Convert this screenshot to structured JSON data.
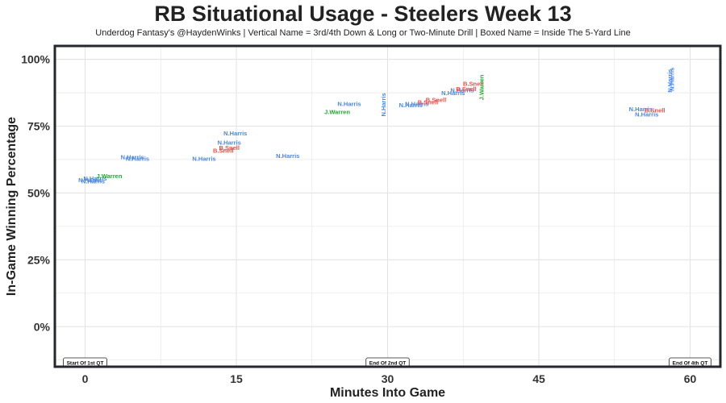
{
  "colors": {
    "N.Harris": "#4A86E8",
    "B.Snell": "#E8504A",
    "J.Warren": "#22A82E",
    "frame": "#24272c",
    "grid": "#e3e3e3"
  },
  "chart_data": {
    "type": "scatter",
    "title": "RB Situational Usage - Steelers Week 13",
    "subtitle": "Underdog Fantasy's @HaydenWinks | Vertical Name = 3rd/4th Down & Long or Two-Minute Drill | Boxed Name = Inside The 5-Yard Line",
    "xlabel": "Minutes Into Game",
    "ylabel": "In-Game Winning Percentage",
    "xlim": [
      -3,
      63
    ],
    "ylim": [
      -15,
      105
    ],
    "xticks": [
      0,
      15,
      30,
      45,
      60
    ],
    "xtick_labels": [
      "0",
      "15",
      "30",
      "45",
      "60"
    ],
    "yticks": [
      0,
      25,
      50,
      75,
      100
    ],
    "ytick_labels": [
      "0%",
      "25%",
      "50%",
      "75%",
      "100%"
    ],
    "grid": true,
    "markers": [
      {
        "x": 0,
        "label": "Start Of 1st QT"
      },
      {
        "x": 30,
        "label": "End Of 2nd QT"
      },
      {
        "x": 60,
        "label": "End Of 4th QT"
      }
    ],
    "points": [
      {
        "player": "N.Harris",
        "x": 0.5,
        "y": 55,
        "vertical": false
      },
      {
        "player": "N.Harris",
        "x": 0.8,
        "y": 54.5,
        "vertical": false
      },
      {
        "player": "N.Harris",
        "x": 1.0,
        "y": 55.5,
        "vertical": false
      },
      {
        "player": "J.Warren",
        "x": 2.4,
        "y": 56.5,
        "vertical": false
      },
      {
        "player": "N.Harris",
        "x": 4.7,
        "y": 63.5,
        "vertical": false
      },
      {
        "player": "N.Harris",
        "x": 5.2,
        "y": 63,
        "vertical": false
      },
      {
        "player": "N.Harris",
        "x": 11.8,
        "y": 63,
        "vertical": false
      },
      {
        "player": "B.Snell",
        "x": 13.7,
        "y": 66,
        "vertical": false
      },
      {
        "player": "B.Snell",
        "x": 14.3,
        "y": 67,
        "vertical": false
      },
      {
        "player": "N.Harris",
        "x": 14.3,
        "y": 69,
        "vertical": false
      },
      {
        "player": "N.Harris",
        "x": 14.9,
        "y": 72.5,
        "vertical": false
      },
      {
        "player": "N.Harris",
        "x": 20.1,
        "y": 64,
        "vertical": false
      },
      {
        "player": "J.Warren",
        "x": 25.0,
        "y": 80.5,
        "vertical": false
      },
      {
        "player": "N.Harris",
        "x": 26.2,
        "y": 83.5,
        "vertical": false
      },
      {
        "player": "N.Harris",
        "x": 29.6,
        "y": 83,
        "vertical": true
      },
      {
        "player": "N.Harris",
        "x": 32.9,
        "y": 83.5,
        "vertical": false
      },
      {
        "player": "N.Harris",
        "x": 32.3,
        "y": 83,
        "vertical": false
      },
      {
        "player": "B.Snell",
        "x": 34.0,
        "y": 84,
        "vertical": false
      },
      {
        "player": "B.Snell",
        "x": 34.8,
        "y": 85,
        "vertical": false
      },
      {
        "player": "N.Harris",
        "x": 36.5,
        "y": 87.5,
        "vertical": false
      },
      {
        "player": "N.Harris",
        "x": 37.4,
        "y": 88.5,
        "vertical": false
      },
      {
        "player": "B.Snell",
        "x": 37.8,
        "y": 89,
        "vertical": false
      },
      {
        "player": "B.Snell",
        "x": 38.5,
        "y": 91,
        "vertical": false
      },
      {
        "player": "J.Warren",
        "x": 39.3,
        "y": 89.5,
        "vertical": true
      },
      {
        "player": "N.Harris",
        "x": 55.1,
        "y": 81.5,
        "vertical": false
      },
      {
        "player": "N.Harris",
        "x": 55.7,
        "y": 79.5,
        "vertical": false
      },
      {
        "player": "B.Snell",
        "x": 56.5,
        "y": 81,
        "vertical": false
      },
      {
        "player": "N.Harris",
        "x": 58.0,
        "y": 92,
        "vertical": true
      },
      {
        "player": "N.Harris",
        "x": 58.2,
        "y": 92.5,
        "vertical": true
      }
    ]
  }
}
